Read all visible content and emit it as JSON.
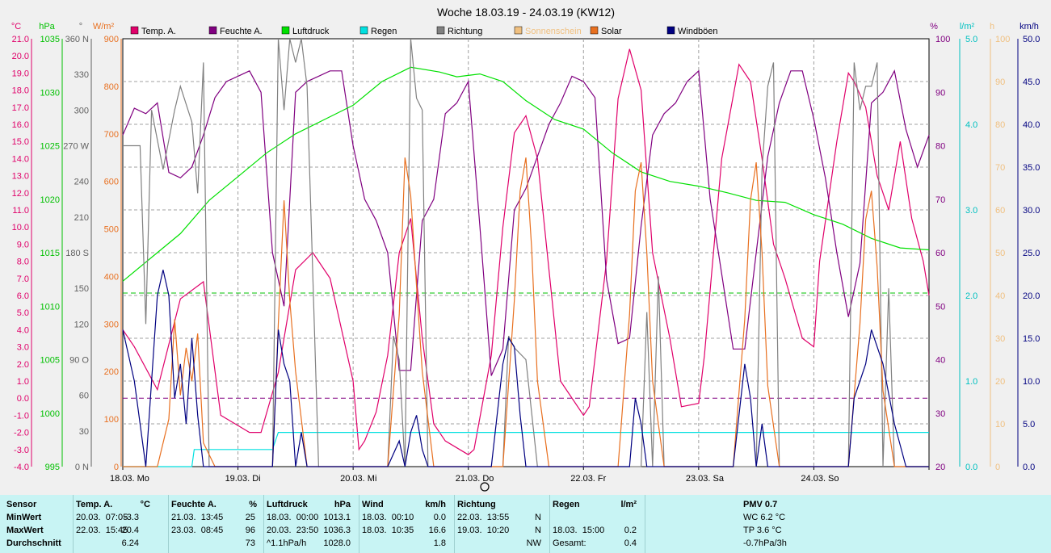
{
  "chart_data": {
    "type": "line",
    "title": "Woche 18.03.19 - 24.03.19 (KW12)",
    "x_range": [
      "18.03.19 00:00",
      "25.03.19 00:00"
    ],
    "x_tick_labels": [
      "18.03. Mo",
      "19.03. Di",
      "20.03. Mi",
      "21.03. Do",
      "22.03. Fr",
      "23.03. Sa",
      "24.03. So"
    ],
    "axes": {
      "temp": {
        "unit": "°C",
        "min": -4,
        "max": 21,
        "ticks": [
          "21.0",
          "20.0",
          "19.0",
          "18.0",
          "17.0",
          "16.0",
          "15.0",
          "14.0",
          "13.0",
          "12.0",
          "11.0",
          "10.0",
          "9.0",
          "8.0",
          "7.0",
          "6.0",
          "5.0",
          "4.0",
          "3.0",
          "2.0",
          "1.0",
          "0.0",
          "-1.0",
          "-2.0",
          "-3.0",
          "-4.0"
        ],
        "color": "#e0006a"
      },
      "pressure": {
        "unit": "hPa",
        "min": 995,
        "max": 1040,
        "ticks": [
          "1035",
          "1030",
          "1025",
          "1020",
          "1015",
          "1010",
          "1005",
          "1000",
          "995"
        ],
        "color": "#00c000"
      },
      "direction": {
        "unit": "°",
        "min": 0,
        "max": 360,
        "ticks": [
          "360 N",
          "330",
          "300",
          "270 W",
          "240",
          "210",
          "180 S",
          "150",
          "120",
          "90 O",
          "60",
          "30",
          "0 N"
        ],
        "color": "#606060"
      },
      "solar": {
        "unit": "W/m²",
        "min": 0,
        "max": 900,
        "ticks": [
          "900",
          "800",
          "700",
          "600",
          "500",
          "400",
          "300",
          "200",
          "100",
          "0"
        ],
        "color": "#e87020"
      },
      "humidity": {
        "unit": "%",
        "min": 20,
        "max": 100,
        "ticks": [
          "100",
          "90",
          "80",
          "70",
          "60",
          "50",
          "40",
          "30",
          "20"
        ],
        "color": "#800080"
      },
      "rain": {
        "unit": "l/m²",
        "min": 0,
        "max": 5,
        "ticks": [
          "5.0",
          "4.0",
          "3.0",
          "2.0",
          "1.0",
          "0.0"
        ],
        "color": "#00c0c0"
      },
      "sunshine": {
        "unit": "h",
        "min": 0,
        "max": 100,
        "ticks": [
          "100",
          "90",
          "80",
          "70",
          "60",
          "50",
          "40",
          "30",
          "20",
          "10",
          "0"
        ],
        "color": "#f0c080"
      },
      "wind": {
        "unit": "km/h",
        "min": 0,
        "max": 50,
        "ticks": [
          "50.0",
          "45.0",
          "40.0",
          "35.0",
          "30.0",
          "25.0",
          "20.0",
          "15.0",
          "10.0",
          "5.0",
          "0.0"
        ],
        "color": "#000080"
      }
    },
    "legend": [
      {
        "name": "Temp. A.",
        "color": "#e0006a"
      },
      {
        "name": "Feuchte A.",
        "color": "#800080"
      },
      {
        "name": "Luftdruck",
        "color": "#00e000"
      },
      {
        "name": "Regen",
        "color": "#00e0e0"
      },
      {
        "name": "Richtung",
        "color": "#808080"
      },
      {
        "name": "Sonnenschein",
        "color": "#f0c080"
      },
      {
        "name": "Solar",
        "color": "#e87020"
      },
      {
        "name": "Windböen",
        "color": "#000080"
      }
    ],
    "series": [
      {
        "name": "Temp. A.",
        "axis": "temp",
        "color": "#e0006a",
        "x": [
          0,
          0.1,
          0.3,
          0.5,
          0.7,
          0.85,
          1.0,
          1.1,
          1.2,
          1.35,
          1.5,
          1.65,
          1.8,
          2.0,
          2.05,
          2.1,
          2.2,
          2.3,
          2.4,
          2.5,
          2.6,
          2.7,
          2.8,
          3.0,
          3.05,
          3.2,
          3.3,
          3.4,
          3.5,
          3.6,
          3.8,
          4.0,
          4.05,
          4.2,
          4.3,
          4.4,
          4.5,
          4.6,
          4.75,
          4.85,
          5.0,
          5.05,
          5.2,
          5.35,
          5.45,
          5.55,
          5.65,
          5.75,
          5.9,
          6.0,
          6.05,
          6.2,
          6.3,
          6.35,
          6.45,
          6.55,
          6.65,
          6.75,
          6.85,
          6.95,
          7.0
        ],
        "y": [
          4.0,
          3.0,
          0.5,
          5.8,
          6.8,
          -1.0,
          -1.6,
          -2.0,
          -2.0,
          1.5,
          7.5,
          8.5,
          7.0,
          1.0,
          -3.0,
          -2.5,
          -0.8,
          2.5,
          8.5,
          10.5,
          3.5,
          -1.5,
          -2.5,
          -3.3,
          -3.0,
          2.5,
          10.0,
          15.5,
          16.5,
          14.0,
          1.0,
          -1.0,
          -0.5,
          8.0,
          17.5,
          20.4,
          18.0,
          8.5,
          3.5,
          -0.5,
          -0.3,
          2.5,
          14.0,
          19.5,
          18.5,
          14.0,
          9.0,
          7.0,
          3.5,
          3.0,
          8.0,
          15.0,
          19.0,
          18.5,
          17.0,
          13.0,
          11.0,
          15.0,
          10.5,
          8.0,
          6.0
        ]
      },
      {
        "name": "Feuchte A.",
        "axis": "humidity",
        "color": "#800080",
        "x": [
          0,
          0.1,
          0.2,
          0.3,
          0.4,
          0.5,
          0.6,
          0.7,
          0.8,
          0.9,
          1.0,
          1.1,
          1.2,
          1.3,
          1.4,
          1.5,
          1.6,
          1.7,
          1.8,
          1.9,
          2.0,
          2.05,
          2.1,
          2.2,
          2.3,
          2.4,
          2.5,
          2.6,
          2.7,
          2.8,
          2.9,
          3.0,
          3.1,
          3.2,
          3.3,
          3.4,
          3.5,
          3.6,
          3.7,
          3.8,
          3.9,
          4.0,
          4.1,
          4.2,
          4.3,
          4.4,
          4.5,
          4.6,
          4.7,
          4.8,
          4.9,
          5.0,
          5.1,
          5.2,
          5.3,
          5.4,
          5.5,
          5.6,
          5.7,
          5.8,
          5.9,
          6.0,
          6.1,
          6.2,
          6.3,
          6.4,
          6.5,
          6.6,
          6.7,
          6.8,
          6.9,
          7.0
        ],
        "y": [
          82,
          87,
          86,
          88,
          75,
          74,
          76,
          82,
          89,
          92,
          93,
          94,
          90,
          60,
          50,
          90,
          92,
          93,
          94,
          94,
          80,
          75,
          70,
          66,
          60,
          38,
          38,
          66,
          70,
          86,
          88,
          92,
          65,
          37,
          42,
          68,
          72,
          78,
          84,
          88,
          93,
          92,
          89,
          55,
          43,
          44,
          65,
          82,
          86,
          88,
          92,
          94,
          70,
          56,
          42,
          42,
          60,
          78,
          88,
          94,
          94,
          85,
          74,
          60,
          48,
          58,
          88,
          90,
          94,
          83,
          76,
          82
        ]
      },
      {
        "name": "Luftdruck",
        "axis": "pressure",
        "color": "#00e000",
        "x": [
          0,
          0.25,
          0.5,
          0.75,
          1.0,
          1.25,
          1.5,
          1.75,
          2.0,
          2.25,
          2.5,
          2.75,
          2.9,
          3.1,
          3.3,
          3.5,
          3.75,
          4.0,
          4.25,
          4.5,
          4.75,
          5.0,
          5.25,
          5.5,
          5.75,
          6.0,
          6.25,
          6.5,
          6.75,
          7.0
        ],
        "y": [
          1014.5,
          1017.0,
          1019.5,
          1023.0,
          1025.5,
          1028.0,
          1030.0,
          1031.5,
          1033.0,
          1035.5,
          1037.0,
          1036.5,
          1036.0,
          1036.3,
          1035.5,
          1033.5,
          1031.5,
          1030.5,
          1028.0,
          1026.0,
          1025.0,
          1024.5,
          1023.8,
          1023.0,
          1022.8,
          1021.5,
          1020.5,
          1019.0,
          1018.0,
          1017.8
        ]
      },
      {
        "name": "Regen",
        "axis": "rain",
        "color": "#00e0e0",
        "x": [
          0,
          0.6,
          0.62,
          1.0,
          1.3,
          1.35,
          7.0
        ],
        "y": [
          0,
          0,
          0.2,
          0.2,
          0.2,
          0.4,
          0.4
        ]
      },
      {
        "name": "Richtung",
        "axis": "direction",
        "color": "#808080",
        "x": [
          0,
          0.15,
          0.2,
          0.25,
          0.35,
          0.45,
          0.5,
          0.6,
          0.65,
          0.7,
          0.75,
          0.8,
          0.85,
          0.9,
          1.0,
          1.3,
          1.35,
          1.4,
          1.45,
          1.5,
          1.55,
          1.6,
          1.7,
          2.0,
          2.3,
          2.35,
          2.4,
          2.45,
          2.5,
          2.55,
          2.6,
          2.65,
          2.7,
          2.8,
          3.2,
          3.3,
          3.35,
          3.4,
          3.5,
          3.6,
          3.7,
          3.8,
          4.0,
          4.5,
          4.55,
          4.6,
          4.65,
          4.7,
          4.75,
          4.8,
          4.9,
          5.0,
          5.5,
          5.55,
          5.6,
          5.65,
          5.7,
          5.75,
          5.8,
          5.9,
          6.0,
          6.3,
          6.35,
          6.4,
          6.45,
          6.5,
          6.55,
          6.6,
          6.65,
          6.7,
          7.0
        ],
        "y": [
          270,
          270,
          120,
          300,
          250,
          300,
          320,
          290,
          230,
          340,
          0,
          0,
          0,
          0,
          0,
          0,
          360,
          300,
          360,
          340,
          360,
          320,
          0,
          0,
          0,
          110,
          90,
          0,
          360,
          310,
          300,
          0,
          0,
          0,
          0,
          0,
          110,
          100,
          90,
          0,
          0,
          0,
          0,
          0,
          130,
          0,
          160,
          0,
          0,
          0,
          0,
          0,
          0,
          250,
          320,
          340,
          0,
          0,
          0,
          0,
          0,
          0,
          340,
          300,
          320,
          320,
          340,
          0,
          150,
          0,
          0
        ]
      },
      {
        "name": "Solar",
        "axis": "solar",
        "color": "#e87020",
        "x": [
          0,
          0.3,
          0.4,
          0.45,
          0.5,
          0.55,
          0.6,
          0.65,
          0.7,
          0.8,
          1.3,
          1.35,
          1.4,
          1.45,
          1.5,
          1.6,
          1.7,
          2.3,
          2.4,
          2.45,
          2.5,
          2.55,
          2.6,
          2.7,
          2.8,
          3.3,
          3.4,
          3.45,
          3.5,
          3.55,
          3.6,
          3.7,
          3.8,
          4.3,
          4.4,
          4.45,
          4.5,
          4.55,
          4.6,
          4.7,
          4.8,
          5.3,
          5.4,
          5.45,
          5.5,
          5.55,
          5.6,
          5.7,
          5.8,
          6.3,
          6.4,
          6.45,
          6.5,
          6.55,
          6.6,
          6.7,
          6.8,
          7.0
        ],
        "y": [
          0,
          0,
          100,
          310,
          150,
          250,
          180,
          280,
          50,
          0,
          0,
          300,
          560,
          350,
          200,
          0,
          0,
          0,
          320,
          650,
          570,
          380,
          200,
          0,
          0,
          0,
          350,
          580,
          650,
          460,
          180,
          0,
          0,
          0,
          320,
          580,
          640,
          450,
          180,
          0,
          0,
          0,
          310,
          560,
          640,
          450,
          170,
          0,
          0,
          0,
          300,
          520,
          580,
          420,
          160,
          0,
          0,
          0
        ]
      },
      {
        "name": "Windböen",
        "axis": "wind",
        "color": "#000080",
        "x": [
          0,
          0.1,
          0.2,
          0.3,
          0.35,
          0.4,
          0.45,
          0.5,
          0.55,
          0.6,
          0.65,
          0.7,
          0.75,
          0.8,
          0.9,
          1.0,
          1.3,
          1.35,
          1.4,
          1.45,
          1.5,
          1.55,
          1.6,
          1.65,
          1.7,
          1.8,
          2.0,
          2.3,
          2.4,
          2.45,
          2.5,
          2.55,
          2.6,
          2.65,
          2.7,
          2.8,
          3.2,
          3.3,
          3.35,
          3.4,
          3.45,
          3.5,
          3.6,
          3.7,
          3.8,
          4.0,
          4.4,
          4.45,
          4.5,
          4.55,
          4.6,
          4.7,
          4.8,
          5.0,
          5.3,
          5.4,
          5.45,
          5.5,
          5.55,
          5.6,
          5.7,
          5.8,
          6.0,
          6.3,
          6.35,
          6.4,
          6.45,
          6.5,
          6.6,
          6.7,
          6.8,
          6.9,
          7.0
        ],
        "y": [
          16,
          10,
          0,
          20,
          23,
          20,
          8,
          12,
          5,
          15,
          6,
          0,
          0,
          0,
          0,
          0,
          0,
          16,
          12,
          10,
          0,
          4,
          0,
          0,
          0,
          0,
          0,
          0,
          3,
          0,
          4,
          6,
          2,
          0,
          0,
          0,
          0,
          12,
          15,
          14,
          6,
          0,
          0,
          0,
          0,
          0,
          0,
          8,
          5,
          0,
          0,
          0,
          0,
          0,
          0,
          12,
          8,
          0,
          5,
          0,
          0,
          0,
          0,
          0,
          8,
          10,
          12,
          16,
          12,
          5,
          0,
          0,
          0
        ]
      }
    ],
    "reference_lines": [
      {
        "axis": "pressure",
        "value": 1013.25,
        "color": "#00c000",
        "style": "dashed"
      },
      {
        "axis": "temp",
        "value": 0.0,
        "color": "#800080",
        "style": "dashed"
      }
    ]
  },
  "stats": {
    "columns": [
      {
        "header": "Sensor",
        "rows": [
          "MinWert",
          "MaxWert",
          "Durchschnitt"
        ]
      },
      {
        "header": "Temp. A.",
        "unit": "°C",
        "rows": [
          "20.03.  07:05",
          "22.03.  15:45",
          ""
        ],
        "values": [
          "-3.3",
          "20.4",
          "6.24"
        ]
      },
      {
        "header": "Feuchte A.",
        "unit": "%",
        "rows": [
          "21.03.  13:45",
          "23.03.  08:45",
          ""
        ],
        "values": [
          "25",
          "96",
          "73"
        ]
      },
      {
        "header": "Luftdruck",
        "unit": "hPa",
        "rows": [
          "18.03.  00:00",
          "20.03.  23:50",
          "^1.1hPa/h"
        ],
        "values": [
          "1013.1",
          "1036.3",
          "1028.0"
        ]
      },
      {
        "header": "Wind",
        "unit": "km/h",
        "rows": [
          "18.03.  00:10",
          "18.03.  10:35",
          ""
        ],
        "values": [
          "0.0",
          "16.6",
          "1.8"
        ]
      },
      {
        "header": "Richtung",
        "unit": "",
        "rows": [
          "22.03.  13:55",
          "19.03.  10:20",
          ""
        ],
        "values": [
          "N",
          "N",
          "NW"
        ]
      },
      {
        "header": "Regen",
        "unit": "l/m²",
        "rows": [
          "",
          "18.03.  15:00",
          "Gesamt:"
        ],
        "values": [
          "",
          "0.2",
          "0.4"
        ]
      },
      {
        "header": "PMV 0.7",
        "unit": "",
        "rows": [
          "WC 6.2 °C",
          "TP 3.6 °C",
          "-0.7hPa/3h"
        ]
      }
    ]
  }
}
